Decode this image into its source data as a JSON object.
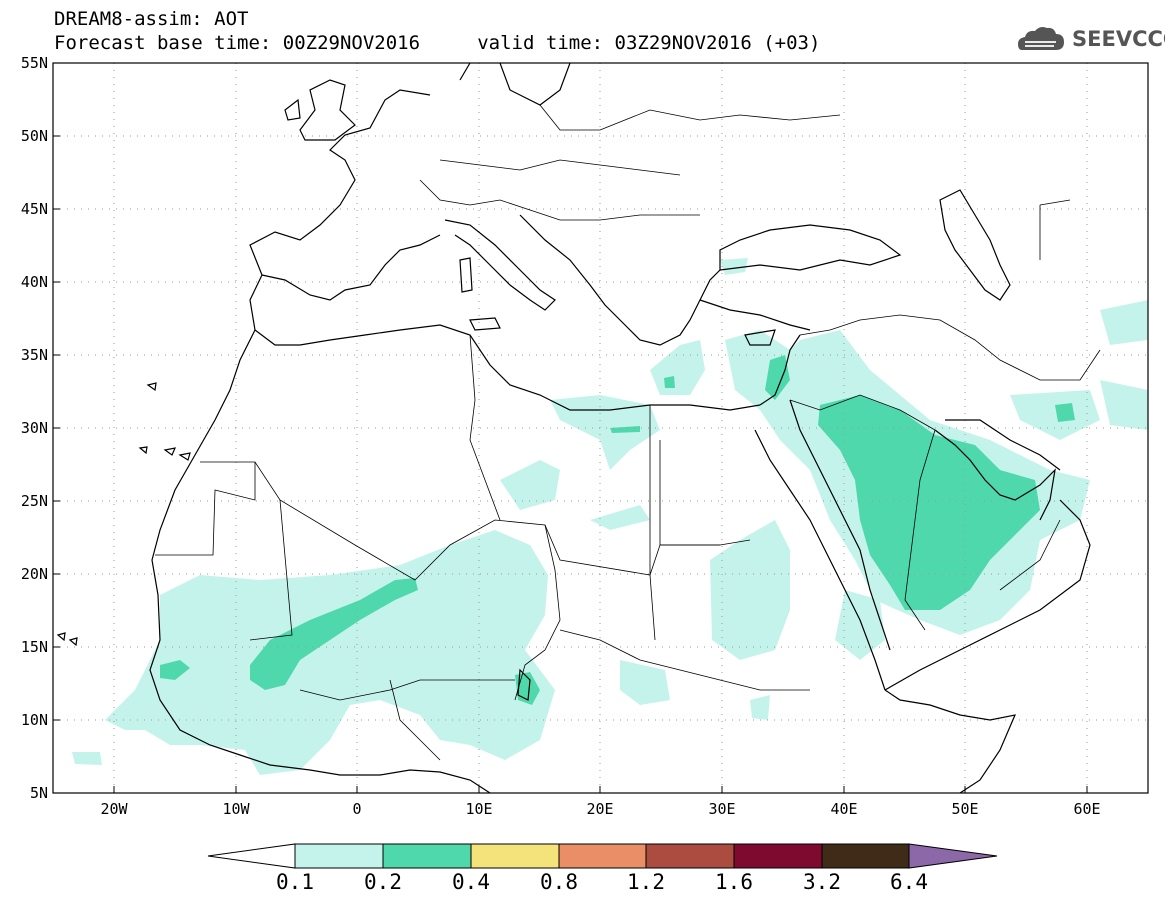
{
  "header": {
    "title_line1": "DREAM8-assim: AOT",
    "title_line2": "Forecast base time: 00Z29NOV2016     valid time: 03Z29NOV2016 (+03)"
  },
  "logo": {
    "text": "SEEVCCC",
    "icon": "cloud-icon"
  },
  "map": {
    "lat_labels": [
      "55N",
      "50N",
      "45N",
      "40N",
      "35N",
      "30N",
      "25N",
      "20N",
      "15N",
      "10N",
      "5N"
    ],
    "lon_labels": [
      "20W",
      "10W",
      "0",
      "10E",
      "20E",
      "30E",
      "40E",
      "50E",
      "60E"
    ],
    "lat_range": [
      5,
      55
    ],
    "lon_range": [
      -25,
      65
    ],
    "grid": "dotted",
    "field": "AOT"
  },
  "colorbar": {
    "levels": [
      "0.1",
      "0.2",
      "0.4",
      "0.8",
      "1.2",
      "1.6",
      "3.2",
      "6.4"
    ],
    "colors": [
      "#ffffff",
      "#c4f3ec",
      "#4fd8ab",
      "#f4e37a",
      "#ea8e68",
      "#ac4b3f",
      "#7f0a2f",
      "#402a18",
      "#8c68a8"
    ]
  }
}
